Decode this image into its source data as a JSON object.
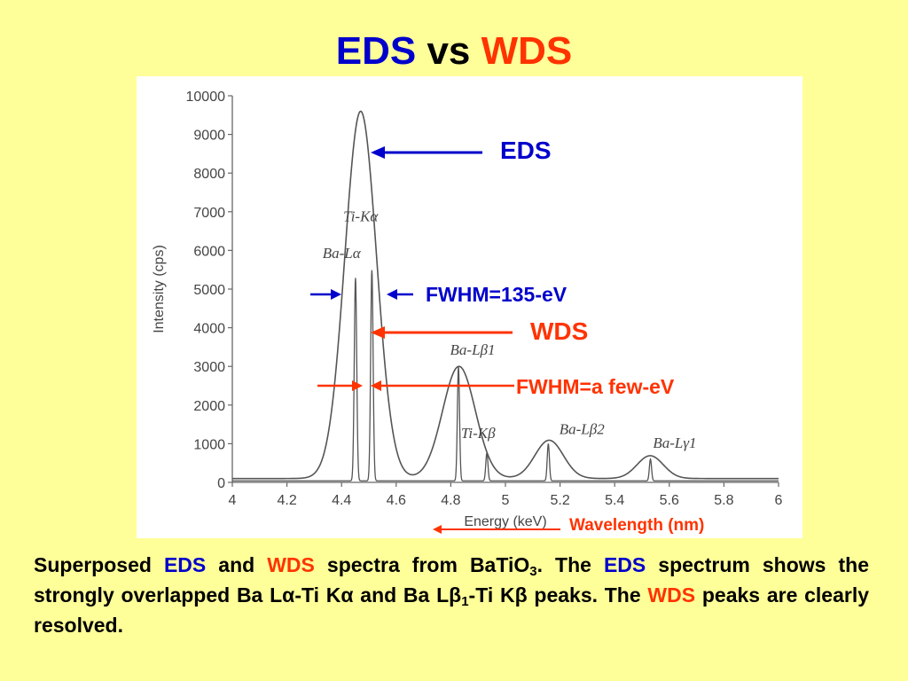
{
  "title": {
    "part1": "EDS",
    "part2": "vs",
    "part3": "WDS"
  },
  "chart_data": {
    "type": "line",
    "xlabel": "Energy (keV)",
    "ylabel": "Intensity (cps)",
    "xlim": [
      4,
      6
    ],
    "ylim": [
      0,
      10000
    ],
    "x_ticks": [
      "4",
      "4.2",
      "4.4",
      "4.6",
      "4.8",
      "5",
      "5.2",
      "5.4",
      "5.6",
      "5.8",
      "6"
    ],
    "y_ticks": [
      "0",
      "1000",
      "2000",
      "3000",
      "4000",
      "5000",
      "6000",
      "7000",
      "8000",
      "9000",
      "10000"
    ],
    "series": [
      {
        "name": "EDS",
        "peaks": [
          {
            "center": 4.47,
            "height": 9500,
            "sigma": 0.058
          },
          {
            "center": 4.83,
            "height": 2900,
            "sigma": 0.06
          },
          {
            "center": 5.16,
            "height": 990,
            "sigma": 0.052
          },
          {
            "center": 5.53,
            "height": 590,
            "sigma": 0.048
          }
        ],
        "baseline": 100
      },
      {
        "name": "WDS",
        "peaks": [
          {
            "center": 4.451,
            "height": 5250,
            "sigma": 0.0045
          },
          {
            "center": 4.511,
            "height": 5450,
            "sigma": 0.0045
          },
          {
            "center": 4.828,
            "height": 2950,
            "sigma": 0.004
          },
          {
            "center": 4.932,
            "height": 720,
            "sigma": 0.004
          },
          {
            "center": 5.157,
            "height": 960,
            "sigma": 0.004
          },
          {
            "center": 5.531,
            "height": 560,
            "sigma": 0.004
          }
        ],
        "baseline": 40
      }
    ],
    "peak_labels": [
      {
        "text": "Ti-Kα",
        "x": 4.47,
        "y": 6750
      },
      {
        "text": "Ba-Lα",
        "x": 4.4,
        "y": 5800
      },
      {
        "text": "Ba-Lβ1",
        "x": 4.88,
        "y": 3300
      },
      {
        "text": "Ti-Kβ",
        "x": 4.9,
        "y": 1150
      },
      {
        "text": "Ba-Lβ2",
        "x": 5.28,
        "y": 1250
      },
      {
        "text": "Ba-Lγ1",
        "x": 5.62,
        "y": 900
      }
    ],
    "annotations": [
      "EDS",
      "FWHM=135-eV",
      "WDS",
      "FWHM=a few-eV",
      "Wavelength (nm)"
    ],
    "grid": false,
    "colors": {
      "curve": "#555555",
      "eds_arrow": "#0000CC",
      "wds_arrow": "#FF3300"
    }
  },
  "caption": {
    "t1": "Superposed ",
    "t2": "EDS",
    "t3": " and ",
    "t4": "WDS",
    "t5": " spectra from BaTiO",
    "t6": "3",
    "t7": ". The ",
    "t8": "EDS",
    "t9": " spectrum shows the strongly overlapped Ba L",
    "t10": "α",
    "t11": "-Ti K",
    "t12": "α",
    "t13": " and Ba L",
    "t14": "β",
    "t15": "1",
    "t16": "-Ti K",
    "t17": "β",
    "t18": " peaks. The ",
    "t19": "WDS",
    "t20": " peaks are clearly resolved."
  }
}
